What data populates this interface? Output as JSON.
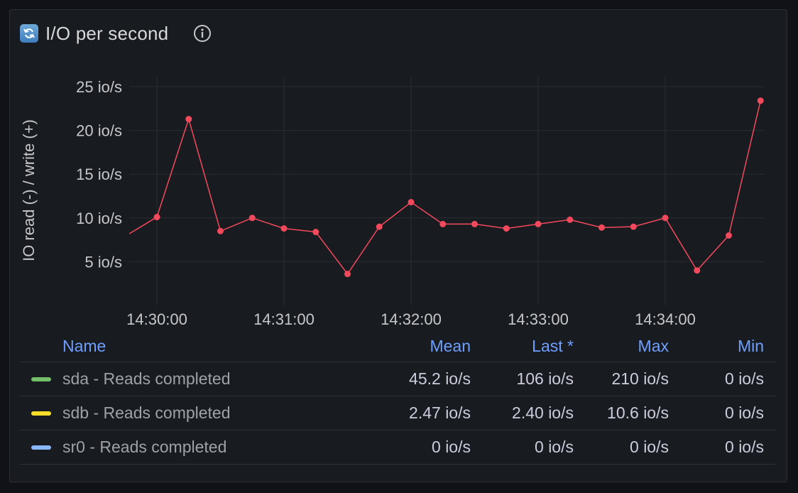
{
  "panel": {
    "title": "I/O per second",
    "title_icon": "refresh-icon",
    "info_icon": "info-icon"
  },
  "chart_data": {
    "type": "line",
    "ylabel": "IO read (-) / write (+)",
    "y_ticks": [
      "25 io/s",
      "20 io/s",
      "15 io/s",
      "10 io/s",
      "5 io/s"
    ],
    "y_tick_values": [
      25,
      20,
      15,
      10,
      5
    ],
    "ylim": [
      0,
      26
    ],
    "x_ticks": [
      "14:30:00",
      "14:31:00",
      "14:32:00",
      "14:33:00",
      "14:34:00"
    ],
    "x_tick_seconds": [
      0,
      60,
      120,
      180,
      240
    ],
    "xlim_seconds": [
      -13,
      289
    ],
    "grid": true,
    "series": [
      {
        "color": "#f2495c",
        "x_seconds": [
          -13,
          0,
          15,
          30,
          45,
          60,
          75,
          90,
          105,
          120,
          135,
          150,
          165,
          180,
          195,
          210,
          225,
          240,
          255,
          270,
          285
        ],
        "y": [
          8.2,
          10.1,
          21.3,
          8.5,
          10.0,
          8.8,
          8.4,
          3.6,
          9.0,
          11.8,
          9.3,
          9.3,
          8.8,
          9.3,
          9.8,
          8.9,
          9.0,
          10.0,
          4.0,
          8.0,
          23.4
        ]
      }
    ]
  },
  "legend": {
    "headers": {
      "name": "Name",
      "mean": "Mean",
      "last": "Last *",
      "max": "Max",
      "min": "Min"
    },
    "rows": [
      {
        "name": "sda - Reads completed",
        "color": "#73bf69",
        "mean": "45.2 io/s",
        "last": "106 io/s",
        "max": "210 io/s",
        "min": "0 io/s"
      },
      {
        "name": "sdb - Reads completed",
        "color": "#fade2a",
        "mean": "2.47 io/s",
        "last": "2.40 io/s",
        "max": "10.6 io/s",
        "min": "0 io/s"
      },
      {
        "name": "sr0 - Reads completed",
        "color": "#8ab8ff",
        "mean": "0 io/s",
        "last": "0 io/s",
        "max": "0 io/s",
        "min": "0 io/s"
      }
    ]
  }
}
